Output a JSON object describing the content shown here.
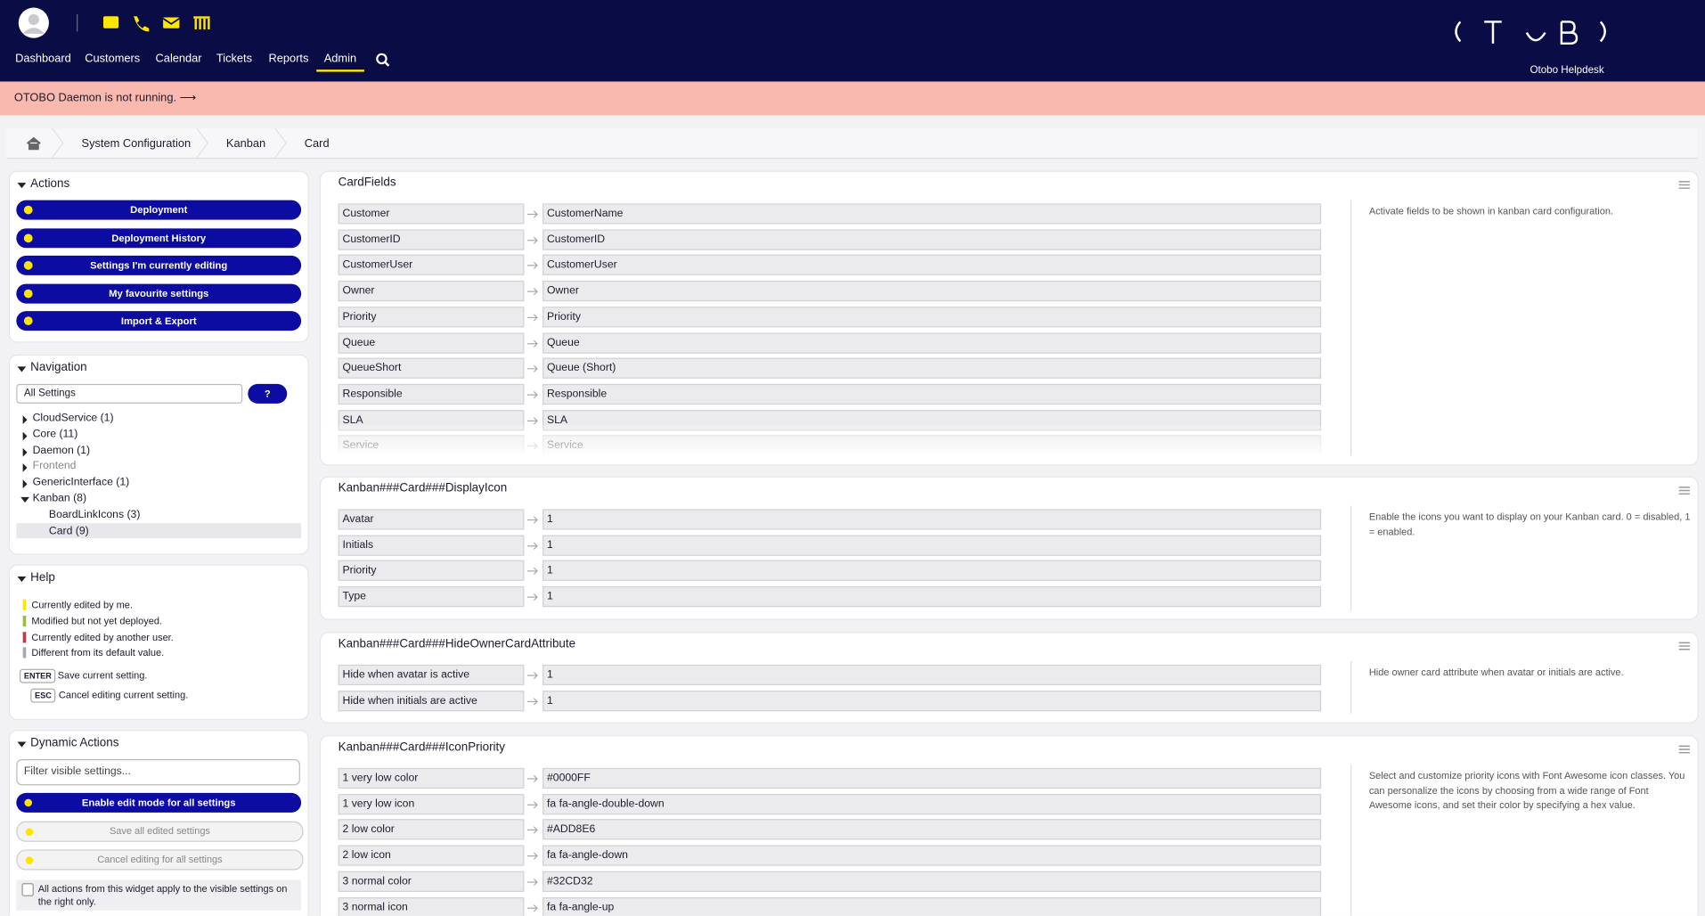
{
  "header": {
    "nav": [
      "Dashboard",
      "Customers",
      "Calendar",
      "Tickets",
      "Reports",
      "Admin"
    ],
    "active_nav": 5,
    "product": "Otobo Helpdesk"
  },
  "notice": "OTOBO Daemon is not running. ⟶",
  "breadcrumb": [
    "System Configuration",
    "Kanban",
    "Card"
  ],
  "sidebar": {
    "actions": {
      "title": "Actions",
      "buttons": [
        "Deployment",
        "Deployment History",
        "Settings I'm currently editing",
        "My favourite settings",
        "Import & Export"
      ]
    },
    "navigation": {
      "title": "Navigation",
      "search": "All Settings",
      "help_button": "?",
      "tree": [
        {
          "label": "CloudService (1)"
        },
        {
          "label": "Core (11)"
        },
        {
          "label": "Daemon (1)"
        },
        {
          "label": "Frontend",
          "disabled": true
        },
        {
          "label": "GenericInterface (1)"
        },
        {
          "label": "Kanban (8)",
          "expanded": true,
          "children": [
            {
              "label": "BoardLinkIcons (3)"
            },
            {
              "label": "Card (9)",
              "selected": true
            }
          ]
        }
      ]
    },
    "help": {
      "title": "Help",
      "legend": [
        {
          "color": "#ffe600",
          "text": "Currently edited by me."
        },
        {
          "color": "#9fb84a",
          "text": "Modified but not yet deployed."
        },
        {
          "color": "#c0394b",
          "text": "Currently edited by another user."
        },
        {
          "color": "#a8a8b0",
          "text": "Different from its default value."
        }
      ],
      "keys": [
        {
          "key": "ENTER",
          "text": "Save current setting."
        },
        {
          "key": "ESC",
          "text": "Cancel editing current setting."
        }
      ]
    },
    "dynamic_actions": {
      "title": "Dynamic Actions",
      "filter": "Filter visible settings...",
      "buttons": [
        {
          "text": "Enable edit mode for all settings",
          "state": "primary"
        },
        {
          "text": "Save all edited settings",
          "state": "disabled"
        },
        {
          "text": "Cancel editing for all settings",
          "state": "disabled"
        }
      ],
      "info": "All actions from this widget apply to the visible settings on the right only."
    }
  },
  "settings": [
    {
      "title": "CardFields",
      "description": "Activate fields to be shown in kanban card configuration.",
      "rows": [
        [
          "Customer",
          "CustomerName"
        ],
        [
          "CustomerID",
          "CustomerID"
        ],
        [
          "CustomerUser",
          "CustomerUser"
        ],
        [
          "Owner",
          "Owner"
        ],
        [
          "Priority",
          "Priority"
        ],
        [
          "Queue",
          "Queue"
        ],
        [
          "QueueShort",
          "Queue (Short)"
        ],
        [
          "Responsible",
          "Responsible"
        ],
        [
          "SLA",
          "SLA"
        ],
        [
          "Service",
          "Service"
        ]
      ]
    },
    {
      "title": "Kanban###Card###DisplayIcon",
      "description": "Enable the icons you want to display on your Kanban card. 0 = disabled, 1 = enabled.",
      "rows": [
        [
          "Avatar",
          "1"
        ],
        [
          "Initials",
          "1"
        ],
        [
          "Priority",
          "1"
        ],
        [
          "Type",
          "1"
        ]
      ]
    },
    {
      "title": "Kanban###Card###HideOwnerCardAttribute",
      "description": "Hide owner card attribute when avatar or initials are active.",
      "rows": [
        [
          "Hide when avatar is active",
          "1"
        ],
        [
          "Hide when initials are active",
          "1"
        ]
      ]
    },
    {
      "title": "Kanban###Card###IconPriority",
      "description": "Select and customize priority icons with Font Awesome icon classes. You can personalize the icons by choosing from a wide range of Font Awesome icons, and set their color by specifying a hex value.",
      "rows": [
        [
          "1 very low color",
          "#0000FF"
        ],
        [
          "1 very low icon",
          "fa fa-angle-double-down"
        ],
        [
          "2 low color",
          "#ADD8E6"
        ],
        [
          "2 low icon",
          "fa fa-angle-down"
        ],
        [
          "3 normal color",
          "#32CD32"
        ],
        [
          "3 normal icon",
          "fa fa-angle-up"
        ]
      ]
    }
  ]
}
